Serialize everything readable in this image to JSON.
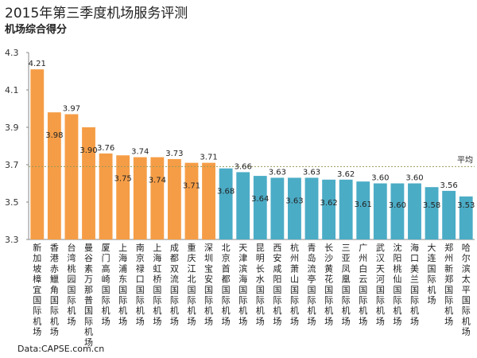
{
  "title": "2015年第三季度机场服务评测",
  "subtitle": "机场综合得分",
  "source": "Data:CAPSE.com.cn",
  "avg_label": "平均",
  "colors": {
    "orange": "#F59D46",
    "blue": "#4BACC6",
    "avg_line": "#9A9A5A",
    "axis": "#888888"
  },
  "chart_data": {
    "type": "bar",
    "title": "2015年第三季度机场服务评测",
    "subtitle": "机场综合得分",
    "ylim": [
      3.3,
      4.3
    ],
    "yticks": [
      3.3,
      3.5,
      3.7,
      3.9,
      4.1,
      4.3
    ],
    "average": 3.69,
    "grid": false,
    "categories": [
      "新加坡樟宜国际机场",
      "香港赤鱲角国际机场",
      "台湾桃园国际机场",
      "曼谷素万那普国际机场",
      "厦门高崎国际机场",
      "上海浦东国际机场",
      "南京禄口国际机场",
      "上海虹桥国际机场",
      "成都双流国际机场",
      "重庆江北国际机场",
      "深圳宝安国际机场",
      "北京首都国际机场",
      "天津滨海国际机场",
      "昆明长水国际机场",
      "西安咸阳国际机场",
      "杭州萧山国际机场",
      "青岛流亭国际机场",
      "长沙黄花国际机场",
      "三亚凤凰国际机场",
      "广州白云国际机场",
      "武汉天河国际机场",
      "沈阳桃仙国际机场",
      "海口美兰国际机场",
      "大连国际机场",
      "郑州新郑国际机场",
      "哈尔滨太平国际机场"
    ],
    "values": [
      4.21,
      3.98,
      3.97,
      3.9,
      3.76,
      3.75,
      3.74,
      3.74,
      3.73,
      3.71,
      3.71,
      3.68,
      3.66,
      3.64,
      3.63,
      3.63,
      3.63,
      3.62,
      3.62,
      3.61,
      3.6,
      3.6,
      3.6,
      3.58,
      3.56,
      3.53
    ],
    "value_labels": [
      "4.21",
      "3.98",
      "3.97",
      "3.90",
      "3.76",
      "3.75",
      "3.74",
      "3.74",
      "3.73",
      "3.71",
      "3.71",
      "3.68",
      "3.66",
      "3.64",
      "3.63",
      "3.63",
      "3.63",
      "3.62",
      "3.62",
      "3.61",
      "3.60",
      "3.60",
      "3.60",
      "3.58",
      "3.56",
      "3.53"
    ],
    "bar_colors": [
      "orange",
      "orange",
      "orange",
      "orange",
      "orange",
      "orange",
      "orange",
      "orange",
      "orange",
      "orange",
      "orange",
      "blue",
      "blue",
      "blue",
      "blue",
      "blue",
      "blue",
      "blue",
      "blue",
      "blue",
      "blue",
      "blue",
      "blue",
      "blue",
      "blue",
      "blue"
    ]
  }
}
